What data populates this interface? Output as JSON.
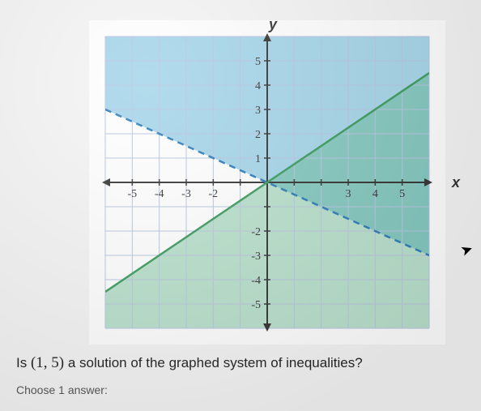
{
  "graph": {
    "type": "inequality-system",
    "xlim": [
      -6,
      6
    ],
    "ylim": [
      -6,
      6
    ],
    "xtick_labels": [
      "-5",
      "-4",
      "-3",
      "-2",
      "",
      "",
      "",
      "3",
      "4",
      "5"
    ],
    "xtick_positions": [
      -5,
      -4,
      -3,
      -2,
      -1,
      1,
      2,
      3,
      4,
      5
    ],
    "ytick_labels": [
      "5",
      "4",
      "3",
      "2",
      "1",
      "",
      "-2",
      "-3",
      "-4",
      "-5"
    ],
    "ytick_positions": [
      5,
      4,
      3,
      2,
      1,
      -1,
      -2,
      -3,
      -4,
      -5
    ],
    "x_axis_label": "x",
    "y_axis_label": "y",
    "grid_color": "#b8c5e0",
    "axis_color": "#333333",
    "background_color": "#ffffff",
    "tick_fontsize": 14,
    "label_fontsize": 18,
    "inequalities": [
      {
        "type": "line",
        "name": "dashed-blue-line",
        "line_style": "dashed",
        "line_color": "#2b7bb9",
        "line_width": 2.5,
        "points": [
          [
            -6,
            3
          ],
          [
            6,
            -3
          ]
        ],
        "shade_side": "above",
        "shade_color": "#5bb5d8",
        "shade_opacity": 0.55
      },
      {
        "type": "line",
        "name": "solid-green-line",
        "line_style": "solid",
        "line_color": "#3a9b5c",
        "line_width": 2.5,
        "points": [
          [
            -6,
            -4.5
          ],
          [
            6,
            4.5
          ]
        ],
        "shade_side": "below",
        "shade_color": "#4fb580",
        "shade_opacity": 0.4
      }
    ]
  },
  "question": {
    "prefix": "Is ",
    "point": "(1, 5)",
    "suffix": " a solution of the graphed system of inequalities?"
  },
  "instruction": "Choose 1 answer:"
}
